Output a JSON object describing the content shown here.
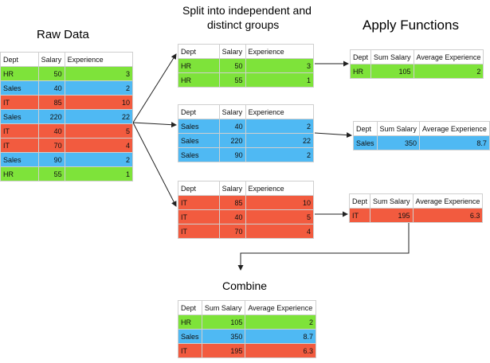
{
  "headings": {
    "raw": "Raw Data",
    "split_line1": "Split into independent and",
    "split_line2": "distinct groups",
    "apply": "Apply Functions",
    "combine": "Combine"
  },
  "columns": {
    "dept": "Dept",
    "salary": "Salary",
    "experience": "Experience",
    "sum_salary": "Sum Salary",
    "avg_experience": "Average Experience"
  },
  "colors": {
    "HR": "#7ee33a",
    "Sales": "#4fb9f3",
    "IT": "#f25b3f"
  },
  "raw_rows": [
    {
      "dept": "HR",
      "salary": "50",
      "experience": "3"
    },
    {
      "dept": "Sales",
      "salary": "40",
      "experience": "2"
    },
    {
      "dept": "IT",
      "salary": "85",
      "experience": "10"
    },
    {
      "dept": "Sales",
      "salary": "220",
      "experience": "22"
    },
    {
      "dept": "IT",
      "salary": "40",
      "experience": "5"
    },
    {
      "dept": "IT",
      "salary": "70",
      "experience": "4"
    },
    {
      "dept": "Sales",
      "salary": "90",
      "experience": "2"
    },
    {
      "dept": "HR",
      "salary": "55",
      "experience": "1"
    }
  ],
  "groups": {
    "hr": [
      {
        "dept": "HR",
        "salary": "50",
        "experience": "3"
      },
      {
        "dept": "HR",
        "salary": "55",
        "experience": "1"
      }
    ],
    "sales": [
      {
        "dept": "Sales",
        "salary": "40",
        "experience": "2"
      },
      {
        "dept": "Sales",
        "salary": "220",
        "experience": "22"
      },
      {
        "dept": "Sales",
        "salary": "90",
        "experience": "2"
      }
    ],
    "it": [
      {
        "dept": "IT",
        "salary": "85",
        "experience": "10"
      },
      {
        "dept": "IT",
        "salary": "40",
        "experience": "5"
      },
      {
        "dept": "IT",
        "salary": "70",
        "experience": "4"
      }
    ]
  },
  "applied": {
    "hr": {
      "dept": "HR",
      "sum_salary": "105",
      "avg_experience": "2"
    },
    "sales": {
      "dept": "Sales",
      "sum_salary": "350",
      "avg_experience": "8.7"
    },
    "it": {
      "dept": "IT",
      "sum_salary": "195",
      "avg_experience": "6.3"
    }
  },
  "combined": [
    {
      "dept": "HR",
      "sum_salary": "105",
      "avg_experience": "2"
    },
    {
      "dept": "Sales",
      "sum_salary": "350",
      "avg_experience": "8.7"
    },
    {
      "dept": "IT",
      "sum_salary": "195",
      "avg_experience": "6.3"
    }
  ]
}
